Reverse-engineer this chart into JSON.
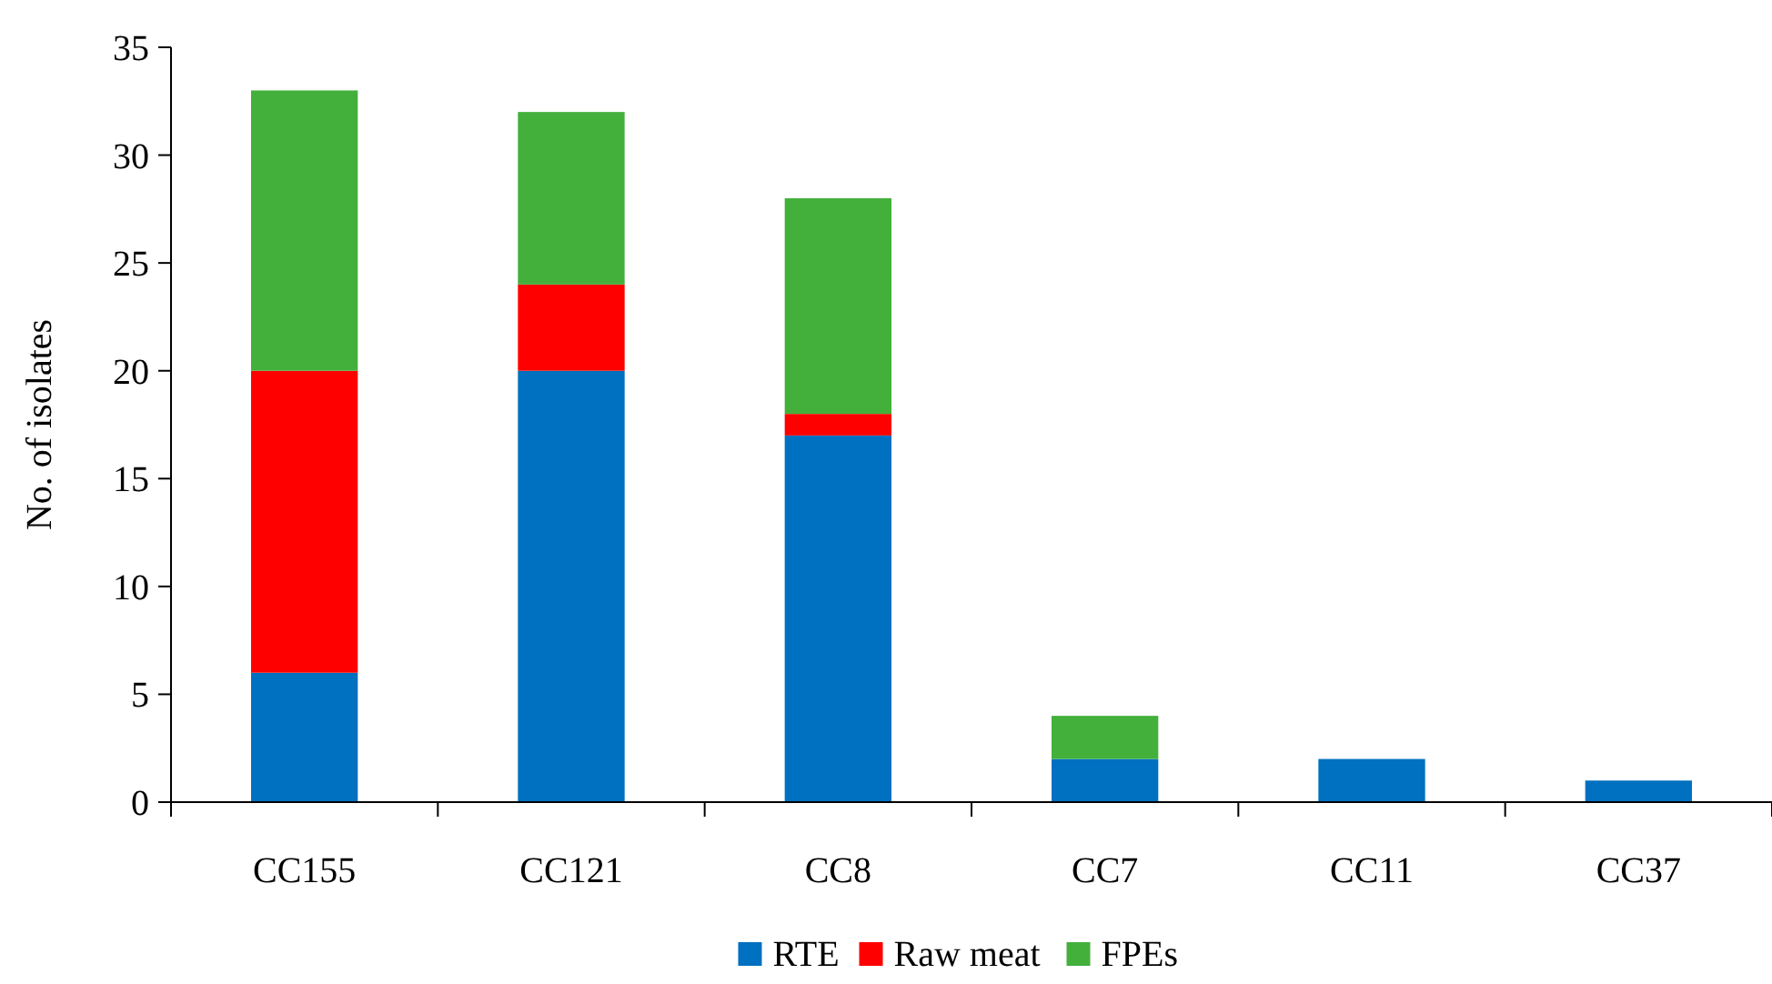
{
  "chart_data": {
    "type": "bar",
    "stacked": true,
    "ylabel": "No. of isolates",
    "categories": [
      "CC155",
      "CC121",
      "CC8",
      "CC7",
      "CC11",
      "CC37"
    ],
    "series": [
      {
        "name": "RTE",
        "color": "#0070c0",
        "values": [
          6,
          20,
          17,
          2,
          2,
          1
        ]
      },
      {
        "name": "Raw meat",
        "color": "#ff0000",
        "values": [
          14,
          4,
          1,
          0,
          0,
          0
        ]
      },
      {
        "name": "FPEs",
        "color": "#43b03c",
        "values": [
          13,
          8,
          10,
          2,
          0,
          0
        ]
      }
    ],
    "ylim": [
      0,
      35
    ],
    "yticks": [
      0,
      5,
      10,
      15,
      20,
      25,
      30,
      35
    ],
    "grid": false,
    "legend": "bottom"
  }
}
